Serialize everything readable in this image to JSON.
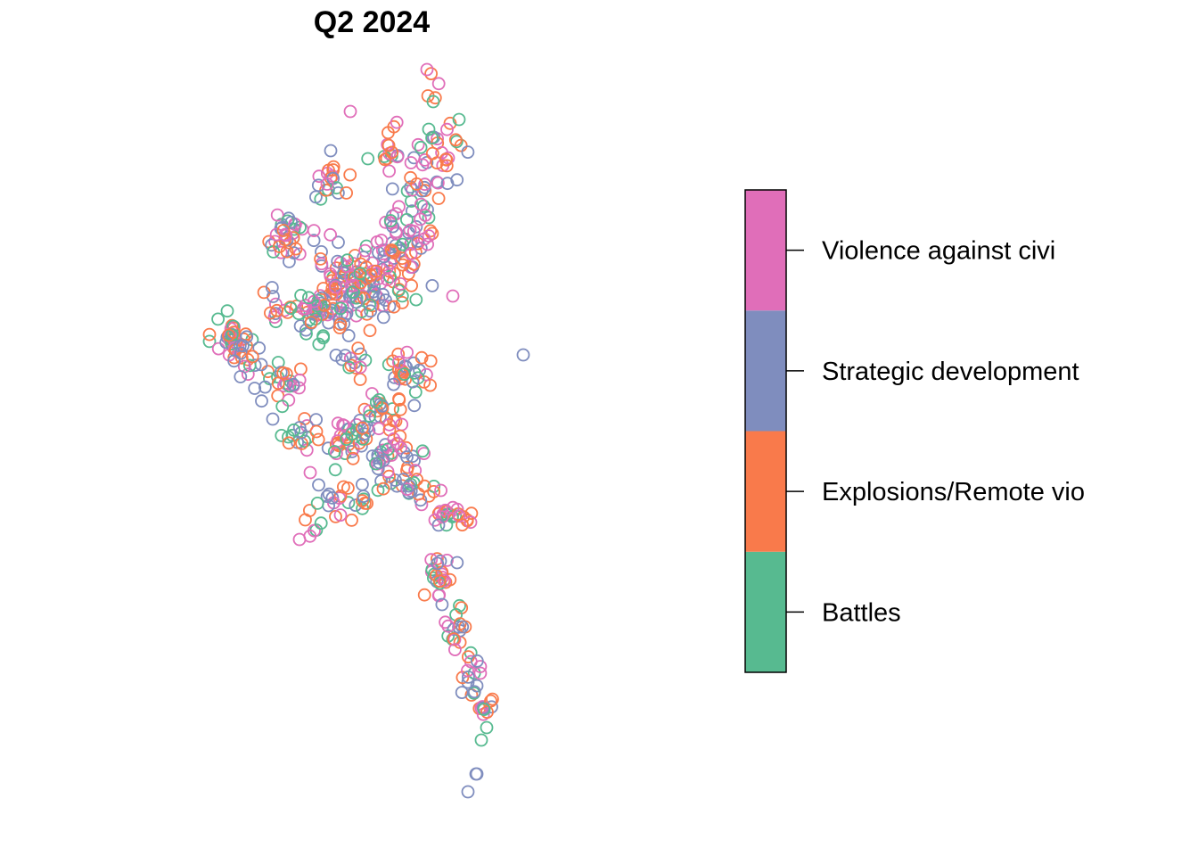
{
  "chart_data": {
    "type": "scatter",
    "title": "Q2 2024",
    "legend": {
      "placement": "right",
      "entries": [
        {
          "label": "Battles",
          "color": "#57BA90"
        },
        {
          "label": "Explosions/Remote vio",
          "color": "#F97A4B"
        },
        {
          "label": "Strategic development",
          "color": "#7F8DBE"
        },
        {
          "label": "Violence against civi",
          "color": "#E06EB9"
        }
      ]
    },
    "marker": "open-circle",
    "grid": false,
    "axes_visible": false
  }
}
